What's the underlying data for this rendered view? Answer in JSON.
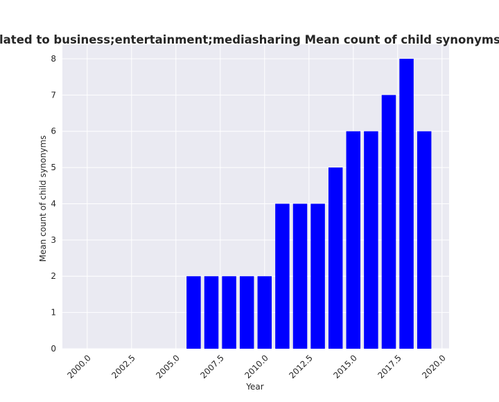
{
  "chart_data": {
    "type": "bar",
    "title": "s are related to business;entertainment;mediasharing Mean count of child synonyms in privac",
    "xlabel": "Year",
    "ylabel": "Mean count of child synonyms",
    "x": [
      2006,
      2007,
      2008,
      2009,
      2010,
      2011,
      2012,
      2013,
      2014,
      2015,
      2016,
      2017,
      2018,
      2019
    ],
    "values": [
      2,
      2,
      2,
      2,
      2,
      4,
      4,
      4,
      5,
      6,
      6,
      7,
      8,
      6
    ],
    "xlim": [
      1998.6,
      2020.4
    ],
    "ylim": [
      0,
      8.4
    ],
    "xticks": [
      "2000.0",
      "2002.5",
      "2005.0",
      "2007.5",
      "2010.0",
      "2012.5",
      "2015.0",
      "2017.5",
      "2020.0"
    ],
    "yticks": [
      "0",
      "1",
      "2",
      "3",
      "4",
      "5",
      "6",
      "7",
      "8"
    ],
    "bar_color": "#0000ff",
    "plot_background": "#eaeaf2",
    "grid": true,
    "legend": "none"
  }
}
